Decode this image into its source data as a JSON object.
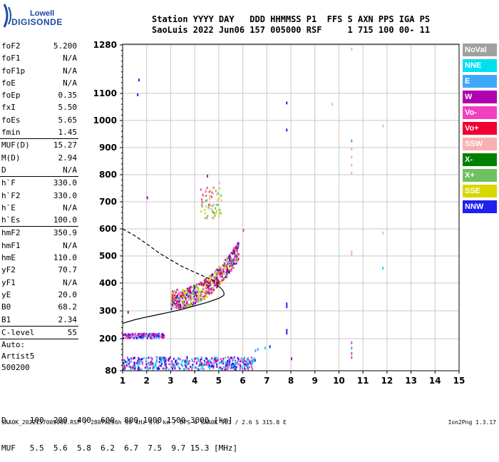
{
  "logo": {
    "line1": "Lowell",
    "line2": "DIGISONDE"
  },
  "header": {
    "line1": "Station YYYY DAY   DDD HHMMSS P1  FFS S AXN PPS IGA PS",
    "line2": "SaoLuis 2022 Jun06 157 005000 RSF     1 715 100 00- 11"
  },
  "params": [
    {
      "k": "foF2",
      "v": "5.200"
    },
    {
      "k": "foF1",
      "v": "N/A"
    },
    {
      "k": "foF1p",
      "v": "N/A"
    },
    {
      "k": "foE",
      "v": "N/A"
    },
    {
      "k": "foEp",
      "v": "0.35"
    },
    {
      "k": "fxI",
      "v": "5.50"
    },
    {
      "k": "foEs",
      "v": "5.65"
    },
    {
      "k": "fmin",
      "v": "1.45"
    },
    {
      "sep": true
    },
    {
      "k": "MUF(D)",
      "v": "15.27"
    },
    {
      "k": "M(D)",
      "v": "2.94"
    },
    {
      "k": "D",
      "v": "N/A"
    },
    {
      "sep": true
    },
    {
      "k": "h`F",
      "v": "330.0"
    },
    {
      "k": "h`F2",
      "v": "330.0"
    },
    {
      "k": "h`E",
      "v": "N/A"
    },
    {
      "k": "h`Es",
      "v": "100.0"
    },
    {
      "sep": true
    },
    {
      "k": "hmF2",
      "v": "350.9"
    },
    {
      "k": "hmF1",
      "v": "N/A"
    },
    {
      "k": "hmE",
      "v": "110.0"
    },
    {
      "k": "yF2",
      "v": "70.7"
    },
    {
      "k": "yF1",
      "v": "N/A"
    },
    {
      "k": "yE",
      "v": "20.0"
    },
    {
      "k": "B0",
      "v": "68.2"
    },
    {
      "k": "B1",
      "v": "2.34"
    },
    {
      "sep": true
    },
    {
      "k": "C-level",
      "v": "55"
    },
    {
      "sep": true
    }
  ],
  "auto": [
    "Auto:",
    "Artist5",
    "500200"
  ],
  "bottom": {
    "line1": "D     100  200  400  600  800 1000 1500 3000 [km]",
    "line2": "MUF   5.5  5.6  5.8  6.2  6.7  7.5  9.7 15.3 [MHz]"
  },
  "footer": {
    "left": "SAA0K_2022157005000.RSF / 280fx256h 50 kHz 5.0 km / DPS-4 SAA0K 903 / 2.6 S 315.8 E",
    "right": "Ion2Png 1.3.17"
  },
  "legend": [
    {
      "label": "NoVal",
      "color": "#a0a0a0"
    },
    {
      "label": "NNE",
      "color": "#00e0f0"
    },
    {
      "label": "E",
      "color": "#40a8f8"
    },
    {
      "label": "W",
      "color": "#b000b0"
    },
    {
      "label": "Vo-",
      "color": "#f040c0"
    },
    {
      "label": "Vo+",
      "color": "#f00030"
    },
    {
      "label": "SSW",
      "color": "#f8b0b0"
    },
    {
      "label": "X-",
      "color": "#008000"
    },
    {
      "label": "X+",
      "color": "#70c060"
    },
    {
      "label": "SSE",
      "color": "#d8d800"
    },
    {
      "label": "NNW",
      "color": "#2020f0"
    }
  ],
  "chart_data": {
    "type": "scatter",
    "x_ticks": [
      "1",
      "2",
      "3",
      "4",
      "5",
      "6",
      "7",
      "8",
      "9",
      "10",
      "11",
      "12",
      "13",
      "14",
      "15"
    ],
    "y_ticks": [
      "80",
      "200",
      "300",
      "400",
      "500",
      "600",
      "700",
      "800",
      "900",
      "1000",
      "1100",
      "1280"
    ],
    "xlim": [
      1,
      15
    ],
    "ylim": [
      80,
      1280
    ],
    "x_unit": "MHz",
    "y_unit": "km",
    "grid": true,
    "profile_curve": {
      "x": [
        1.0,
        1.5,
        2.0,
        2.5,
        3.0,
        3.5,
        4.0,
        4.5,
        5.0,
        5.2
      ],
      "y": [
        255,
        268,
        278,
        287,
        296,
        306,
        318,
        330,
        345,
        355
      ]
    },
    "profile_upper": {
      "x": [
        1.0,
        1.5,
        2.0,
        2.5,
        3.0,
        3.5,
        4.0,
        4.5,
        5.0
      ],
      "y": [
        600,
        575,
        545,
        512,
        485,
        460,
        440,
        420,
        400
      ]
    },
    "echo_clusters": [
      {
        "name": "Es low",
        "x": [
          1.0,
          6.5
        ],
        "y": [
          88,
          135
        ],
        "n": 450,
        "colors": [
          "#2020f0",
          "#b000b0",
          "#f040c0",
          "#40a8f8",
          "#00e0f0"
        ]
      },
      {
        "name": "Es 200",
        "x": [
          1.0,
          2.7
        ],
        "y": [
          205,
          222
        ],
        "n": 120,
        "colors": [
          "#2020f0",
          "#b000b0",
          "#40a8f8",
          "#f040c0"
        ]
      },
      {
        "name": "F trace",
        "x": [
          3.0,
          5.8
        ],
        "y": [
          320,
          560
        ],
        "n": 650,
        "colors": [
          "#b000b0",
          "#f040c0",
          "#f00030",
          "#d8d800",
          "#70c060",
          "#2020f0",
          "#f8b0b0"
        ]
      },
      {
        "name": "multi",
        "x": [
          4.2,
          5.1
        ],
        "y": [
          640,
          760
        ],
        "n": 70,
        "colors": [
          "#f8b0b0",
          "#d8d800",
          "#f040c0",
          "#70c060"
        ]
      }
    ]
  }
}
